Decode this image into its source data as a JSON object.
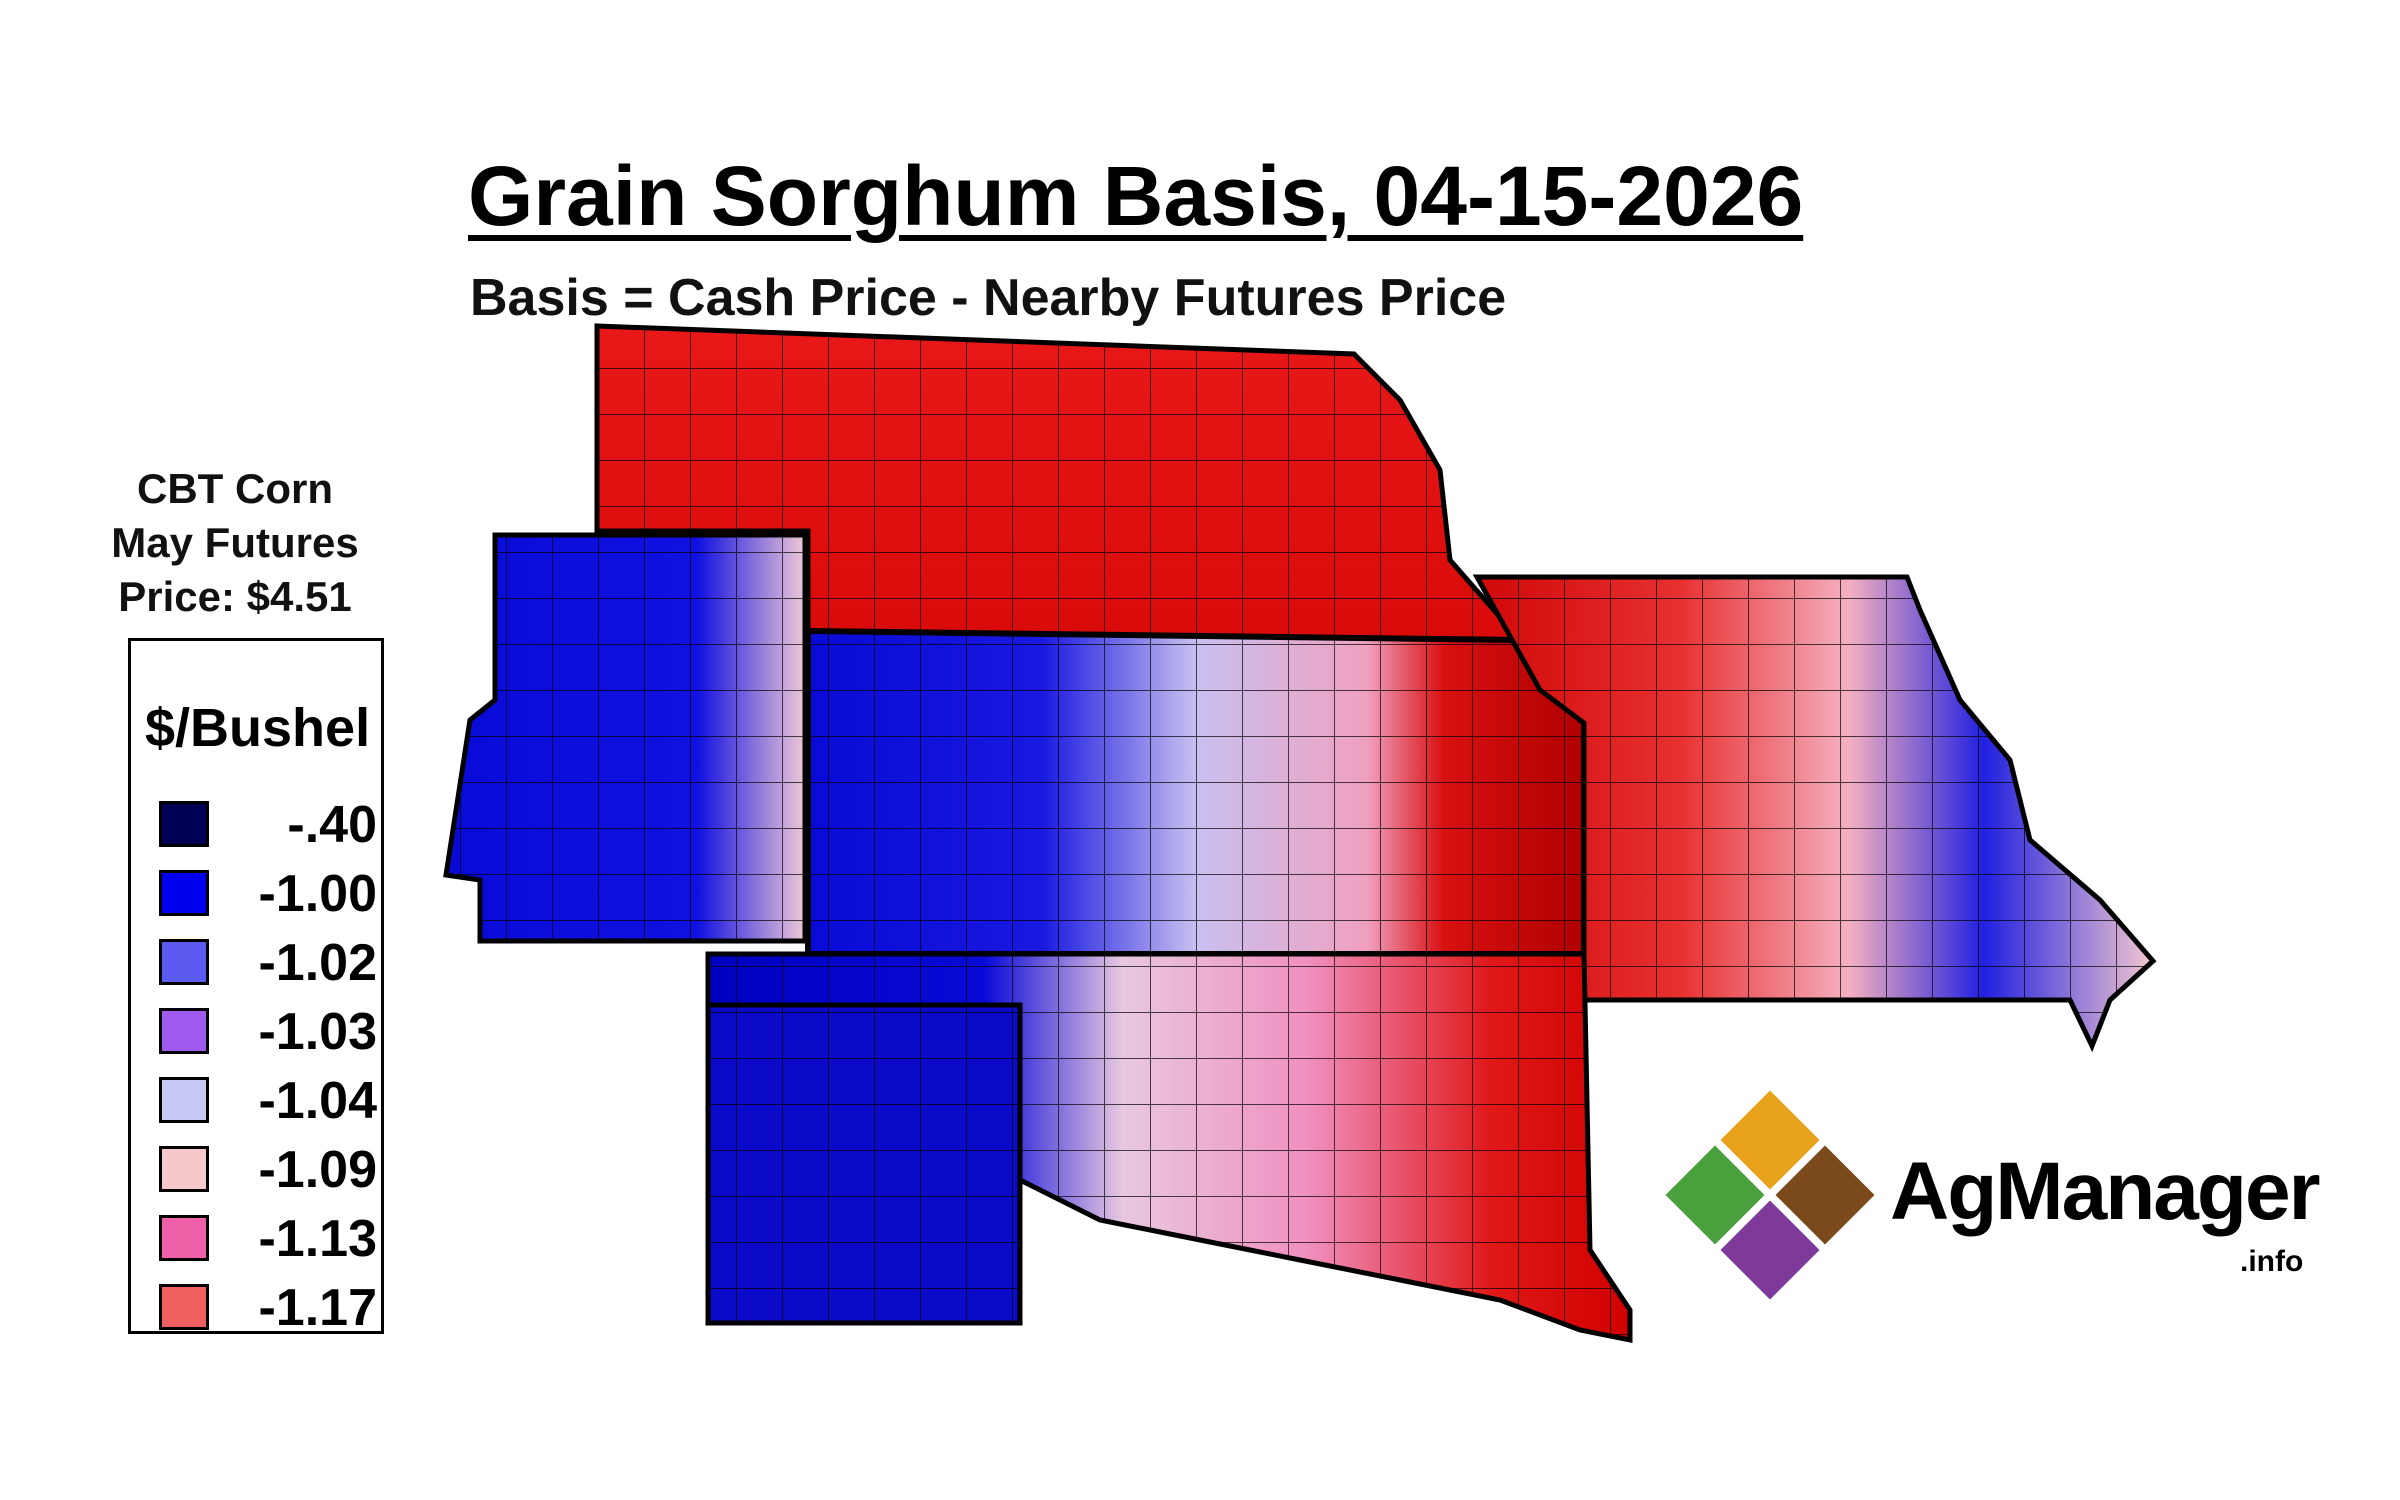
{
  "title": "Grain Sorghum Basis, 04-15-2026",
  "subtitle": "Basis = Cash Price - Nearby Futures Price",
  "futures": {
    "line1": "CBT Corn",
    "line2": "May Futures",
    "line3": "Price: $4.51"
  },
  "legend": {
    "unit": "$/Bushel",
    "items": [
      {
        "label": "-.40",
        "color": "#000055"
      },
      {
        "label": "-1.00",
        "color": "#0000ee"
      },
      {
        "label": "-1.02",
        "color": "#5a5af0"
      },
      {
        "label": "-1.03",
        "color": "#a05af0"
      },
      {
        "label": "-1.04",
        "color": "#c8c8f5"
      },
      {
        "label": "-1.09",
        "color": "#f5c8cc"
      },
      {
        "label": "-1.13",
        "color": "#f060a8"
      },
      {
        "label": "-1.17",
        "color": "#f06060"
      }
    ]
  },
  "map_colors": {
    "red": "#e01010",
    "dark_red": "#b00000",
    "blue": "#0a0ad8",
    "dark_blue": "#0000a0",
    "light": "#e8d8f0"
  },
  "logo": {
    "name": "AgManager",
    "domain": ".info",
    "colors": [
      "#e8a21c",
      "#4aa03c",
      "#7a4a1c",
      "#7d3a9a"
    ]
  }
}
